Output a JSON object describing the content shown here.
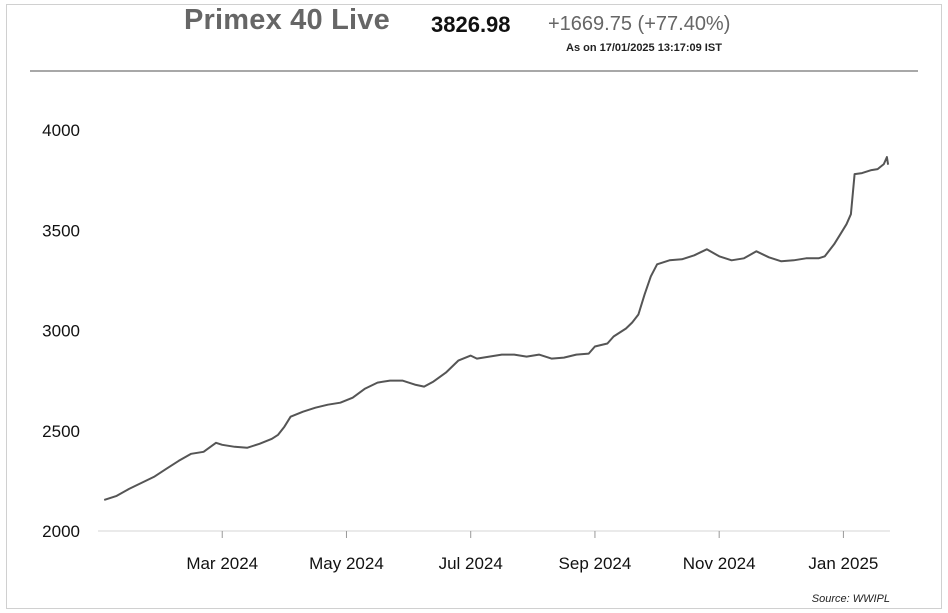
{
  "header": {
    "title": "Primex 40 Live",
    "value": "3826.98",
    "change": "+1669.75",
    "change_pct": "(+77.40%)",
    "as_of": "As on 17/01/2025 13:17:09 IST"
  },
  "source": "Source: WWIPL",
  "colors": {
    "line": "#555555",
    "title": "#666666"
  },
  "chart_data": {
    "type": "line",
    "title": "Primex 40 Live",
    "xlabel": "",
    "ylabel": "",
    "ylim": [
      2000,
      4000
    ],
    "yticks": [
      2000,
      2500,
      3000,
      3500,
      4000
    ],
    "xticks": [
      {
        "label": "Mar 2024",
        "month": 2.0
      },
      {
        "label": "May 2024",
        "month": 4.0
      },
      {
        "label": "Jul 2024",
        "month": 6.0
      },
      {
        "label": "Sep 2024",
        "month": 8.0
      },
      {
        "label": "Nov 2024",
        "month": 10.0
      },
      {
        "label": "Jan 2025",
        "month": 12.0
      }
    ],
    "xlim": [
      0.0,
      12.75
    ],
    "series": [
      {
        "name": "Primex 40",
        "points": [
          [
            0.1,
            2155
          ],
          [
            0.3,
            2175
          ],
          [
            0.5,
            2210
          ],
          [
            0.7,
            2240
          ],
          [
            0.9,
            2270
          ],
          [
            1.1,
            2310
          ],
          [
            1.3,
            2350
          ],
          [
            1.5,
            2385
          ],
          [
            1.7,
            2395
          ],
          [
            1.9,
            2440
          ],
          [
            2.0,
            2430
          ],
          [
            2.2,
            2420
          ],
          [
            2.4,
            2415
          ],
          [
            2.6,
            2435
          ],
          [
            2.8,
            2460
          ],
          [
            2.9,
            2480
          ],
          [
            3.0,
            2520
          ],
          [
            3.1,
            2570
          ],
          [
            3.3,
            2595
          ],
          [
            3.5,
            2615
          ],
          [
            3.7,
            2630
          ],
          [
            3.9,
            2640
          ],
          [
            4.1,
            2665
          ],
          [
            4.3,
            2710
          ],
          [
            4.5,
            2740
          ],
          [
            4.7,
            2750
          ],
          [
            4.9,
            2750
          ],
          [
            5.1,
            2730
          ],
          [
            5.25,
            2720
          ],
          [
            5.4,
            2745
          ],
          [
            5.6,
            2790
          ],
          [
            5.8,
            2850
          ],
          [
            6.0,
            2875
          ],
          [
            6.1,
            2860
          ],
          [
            6.3,
            2870
          ],
          [
            6.5,
            2880
          ],
          [
            6.7,
            2880
          ],
          [
            6.9,
            2870
          ],
          [
            7.1,
            2880
          ],
          [
            7.3,
            2860
          ],
          [
            7.5,
            2865
          ],
          [
            7.7,
            2880
          ],
          [
            7.9,
            2885
          ],
          [
            8.0,
            2920
          ],
          [
            8.2,
            2935
          ],
          [
            8.3,
            2970
          ],
          [
            8.5,
            3010
          ],
          [
            8.6,
            3040
          ],
          [
            8.7,
            3080
          ],
          [
            8.8,
            3180
          ],
          [
            8.9,
            3270
          ],
          [
            9.0,
            3330
          ],
          [
            9.2,
            3350
          ],
          [
            9.4,
            3355
          ],
          [
            9.6,
            3375
          ],
          [
            9.7,
            3390
          ],
          [
            9.8,
            3405
          ],
          [
            10.0,
            3370
          ],
          [
            10.2,
            3350
          ],
          [
            10.4,
            3360
          ],
          [
            10.6,
            3395
          ],
          [
            10.8,
            3365
          ],
          [
            11.0,
            3345
          ],
          [
            11.2,
            3350
          ],
          [
            11.4,
            3360
          ],
          [
            11.6,
            3360
          ],
          [
            11.7,
            3370
          ],
          [
            11.85,
            3430
          ],
          [
            11.95,
            3480
          ],
          [
            12.05,
            3530
          ],
          [
            12.12,
            3580
          ],
          [
            12.18,
            3780
          ],
          [
            12.3,
            3785
          ],
          [
            12.45,
            3800
          ],
          [
            12.55,
            3805
          ],
          [
            12.65,
            3830
          ],
          [
            12.7,
            3865
          ],
          [
            12.72,
            3826.98
          ]
        ]
      }
    ]
  }
}
